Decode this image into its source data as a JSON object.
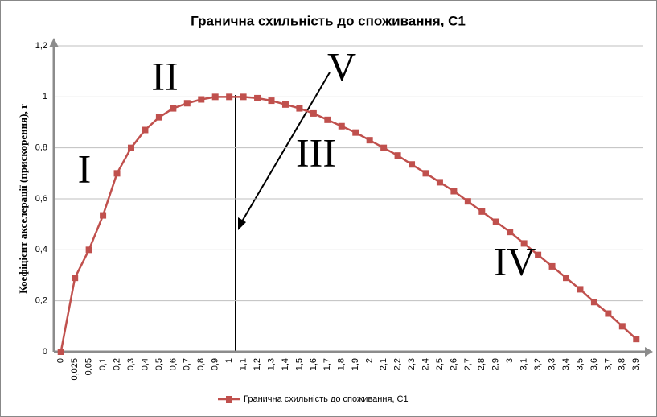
{
  "chart_data": {
    "type": "line",
    "title": "Гранична схильність до споживання, С1",
    "y_label": "Коефіцієнт акселерації (прискорення), r",
    "categories": [
      "0",
      "0,025",
      "0,05",
      "0,1",
      "0,2",
      "0,3",
      "0,4",
      "0,5",
      "0,6",
      "0,7",
      "0,8",
      "0,9",
      "1",
      "1,1",
      "1,2",
      "1,3",
      "1,4",
      "1,5",
      "1,6",
      "1,7",
      "1,8",
      "1,9",
      "2",
      "2,1",
      "2,2",
      "2,3",
      "2,4",
      "2,5",
      "2,6",
      "2,7",
      "2,8",
      "2,9",
      "3",
      "3,1",
      "3,2",
      "3,3",
      "3,4",
      "3,5",
      "3,6",
      "3,7",
      "3,8",
      "3,9"
    ],
    "series": [
      {
        "name": "Гранична схильність до споживання, С1",
        "color": "#c0504d",
        "values": [
          0,
          0.29,
          0.4,
          0.535,
          0.7,
          0.8,
          0.87,
          0.92,
          0.955,
          0.975,
          0.99,
          1.0,
          1.0,
          1.0,
          0.995,
          0.985,
          0.97,
          0.955,
          0.935,
          0.91,
          0.885,
          0.86,
          0.83,
          0.8,
          0.77,
          0.735,
          0.7,
          0.665,
          0.63,
          0.59,
          0.55,
          0.51,
          0.47,
          0.425,
          0.38,
          0.335,
          0.29,
          0.245,
          0.195,
          0.15,
          0.1,
          0.05
        ]
      }
    ],
    "ylim": [
      0,
      1.2
    ],
    "yticks": [
      0,
      {
        "value": 0.2,
        "label": "0,2"
      },
      {
        "value": 0.4,
        "label": "0,4"
      },
      {
        "value": 0.6,
        "label": "0,6"
      },
      {
        "value": 0.8,
        "label": "0,8"
      },
      1,
      {
        "value": 1.2,
        "label": "1,2"
      }
    ],
    "grid": true,
    "legend": "bottom",
    "annotations": [
      "I",
      "II",
      "III",
      "IV",
      "V"
    ]
  }
}
